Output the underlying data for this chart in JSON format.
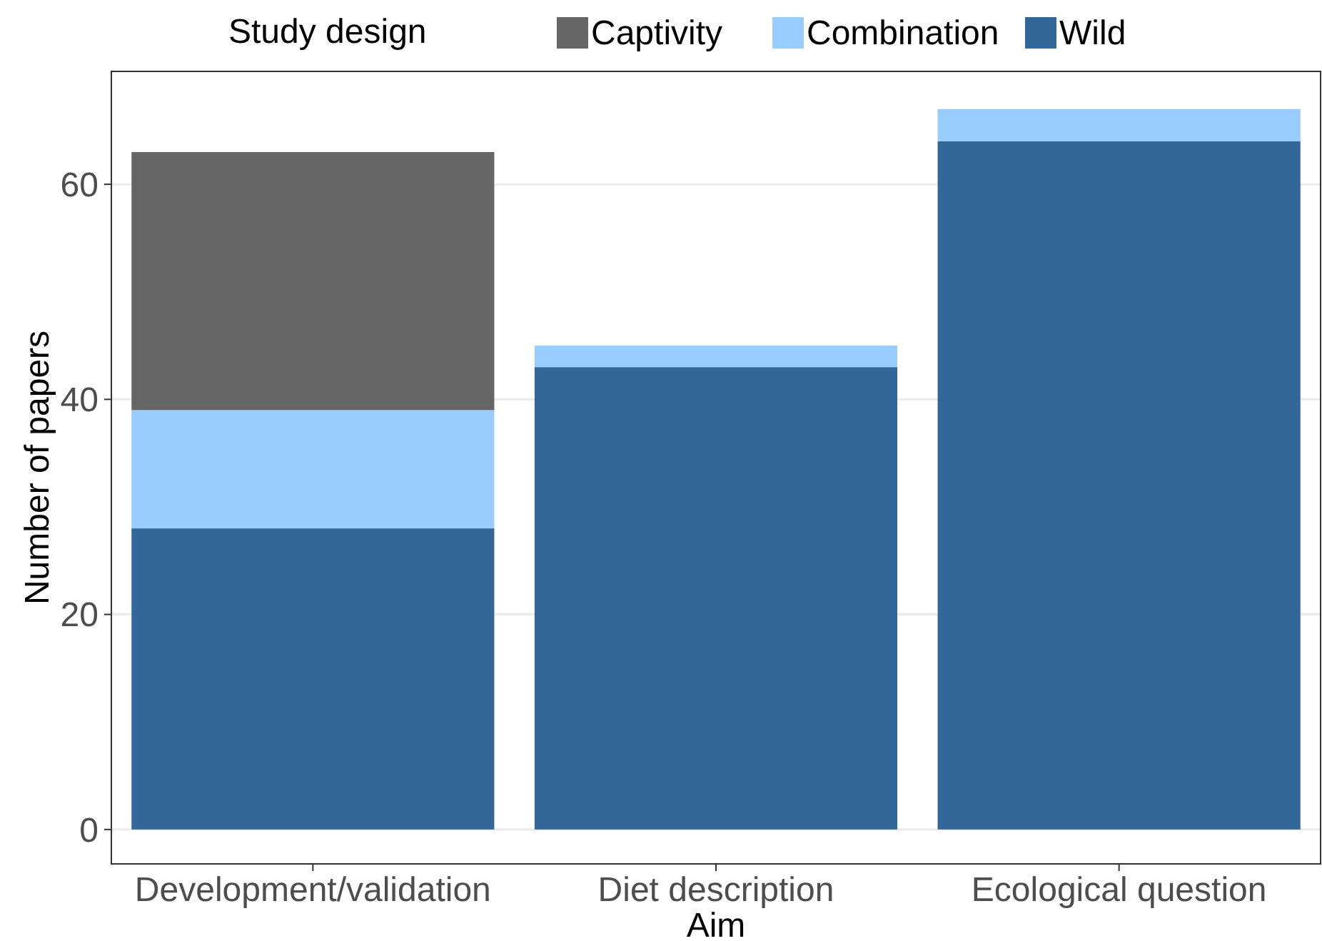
{
  "chart_data": {
    "type": "bar",
    "stacked": true,
    "xlabel": "Aim",
    "ylabel": "Number of papers",
    "legend_title": "Study design",
    "legend": "top",
    "categories": [
      "Development/validation",
      "Diet description",
      "Ecological question"
    ],
    "series": [
      {
        "name": "Wild",
        "color": "#336699",
        "values": [
          28,
          43,
          64
        ]
      },
      {
        "name": "Combination",
        "color": "#99ccff",
        "values": [
          11,
          2,
          3
        ]
      },
      {
        "name": "Captivity",
        "color": "#666666",
        "values": [
          24,
          null,
          null
        ]
      }
    ],
    "ylim": [
      -3.2,
      70.5
    ],
    "yticks": [
      0,
      20,
      40,
      60
    ],
    "grid": "y"
  }
}
